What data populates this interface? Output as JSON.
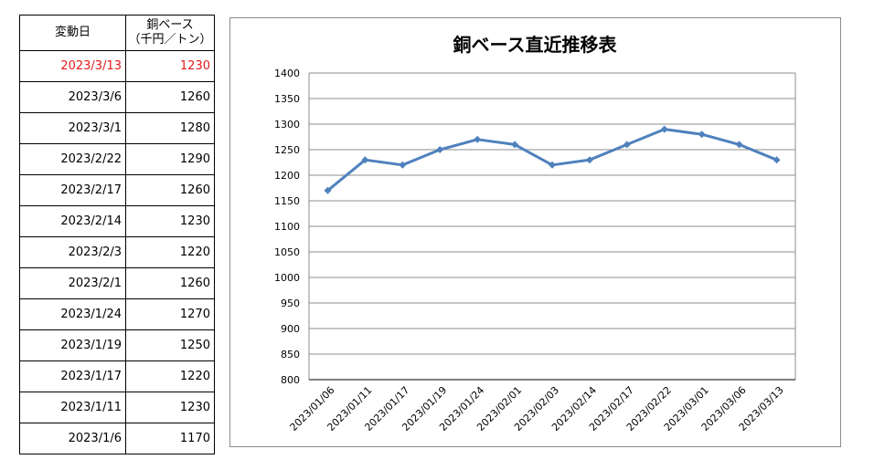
{
  "table": {
    "header_date": "変動日",
    "header_price_line1": "銅ベース",
    "header_price_line2": "（千円／トン）",
    "rows": [
      {
        "date": "2023/3/13",
        "price": "1230"
      },
      {
        "date": "2023/3/6",
        "price": "1260"
      },
      {
        "date": "2023/3/1",
        "price": "1280"
      },
      {
        "date": "2023/2/22",
        "price": "1290"
      },
      {
        "date": "2023/2/17",
        "price": "1260"
      },
      {
        "date": "2023/2/14",
        "price": "1230"
      },
      {
        "date": "2023/2/3",
        "price": "1220"
      },
      {
        "date": "2023/2/1",
        "price": "1260"
      },
      {
        "date": "2023/1/24",
        "price": "1270"
      },
      {
        "date": "2023/1/19",
        "price": "1250"
      },
      {
        "date": "2023/1/17",
        "price": "1220"
      },
      {
        "date": "2023/1/11",
        "price": "1230"
      },
      {
        "date": "2023/1/6",
        "price": "1170"
      }
    ],
    "highlight_color": "#e41a1c"
  },
  "chart_data": {
    "type": "line",
    "title": "銅ベース直近推移表",
    "categories": [
      "2023/01/06",
      "2023/01/11",
      "2023/01/17",
      "2023/01/19",
      "2023/01/24",
      "2023/02/01",
      "2023/02/03",
      "2023/02/14",
      "2023/02/17",
      "2023/02/22",
      "2023/03/01",
      "2023/03/06",
      "2023/03/13"
    ],
    "series": [
      {
        "values": [
          1170,
          1230,
          1220,
          1250,
          1270,
          1260,
          1220,
          1230,
          1260,
          1290,
          1280,
          1260,
          1230
        ],
        "color": "#4f81bd"
      }
    ],
    "ylim": [
      800,
      1400
    ],
    "yticks": [
      800,
      850,
      900,
      950,
      1000,
      1050,
      1100,
      1150,
      1200,
      1250,
      1300,
      1350,
      1400
    ],
    "grid": true,
    "legend": "none"
  }
}
